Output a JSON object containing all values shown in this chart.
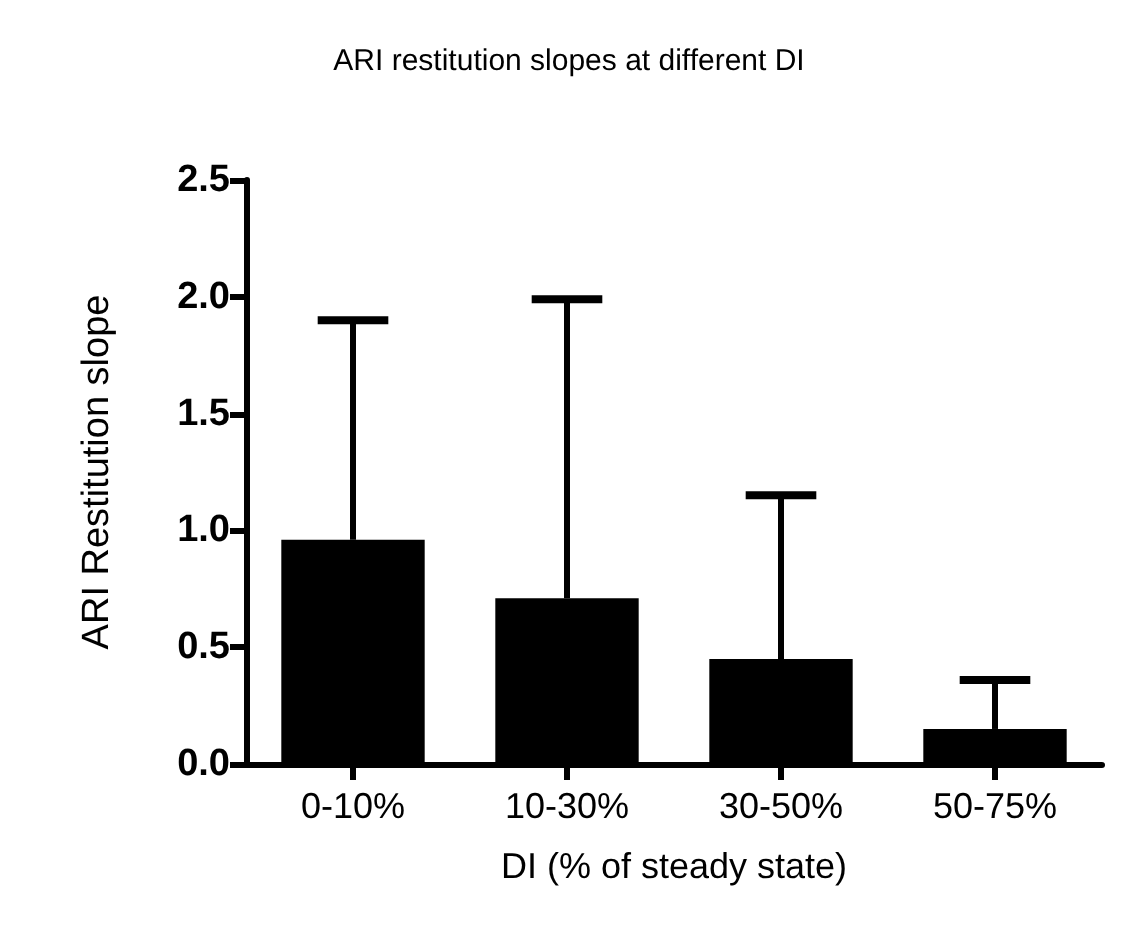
{
  "chart_data": {
    "type": "bar",
    "title": "ARI restitution slopes at different DI",
    "xlabel": "DI (% of steady state)",
    "ylabel": "ARI Restitution slope",
    "categories": [
      "0-10%",
      "10-30%",
      "30-50%",
      "50-75%"
    ],
    "values": [
      0.96,
      0.71,
      0.45,
      0.15
    ],
    "errors": [
      [
        0.96,
        1.9
      ],
      [
        0.71,
        1.99
      ],
      [
        0.45,
        1.15
      ],
      [
        0.15,
        0.36
      ]
    ],
    "color": "#000000",
    "ylim": [
      0,
      2.5
    ],
    "yticks": [
      {
        "value": 0,
        "label": "0.0"
      },
      0.5,
      {
        "value": 1,
        "label": "1.0"
      },
      1.5,
      {
        "value": 2,
        "label": "2.0"
      },
      2.5
    ],
    "grid": false
  }
}
